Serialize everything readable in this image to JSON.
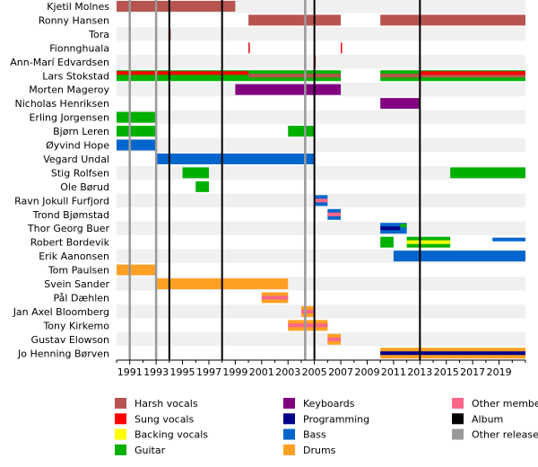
{
  "chart_data": {
    "type": "timeline",
    "x_range": [
      1990.0,
      2021.0
    ],
    "x_ticks": [
      "1991",
      "1993",
      "1995",
      "1997",
      "1999",
      "2001",
      "2003",
      "2005",
      "2007",
      "2009",
      "2011",
      "2013",
      "2015",
      "2017",
      "2019"
    ],
    "colors": {
      "harsh_vocals": "#b85450",
      "sung_vocals": "#ff0000",
      "backing_vocals": "#ffff00",
      "keyboards": "#800080",
      "programming": "#00008b",
      "guitar": "#00b000",
      "bass": "#0066cc",
      "drums": "#ffa024",
      "other": "#ff6688",
      "album": "#000000",
      "other_release": "#999999"
    },
    "legend": [
      {
        "key": "harsh_vocals",
        "label": "Harsh vocals"
      },
      {
        "key": "sung_vocals",
        "label": "Sung vocals"
      },
      {
        "key": "backing_vocals",
        "label": "Backing vocals"
      },
      {
        "key": "guitar",
        "label": "Guitar"
      },
      {
        "key": "keyboards",
        "label": "Keyboards"
      },
      {
        "key": "programming",
        "label": "Programming"
      },
      {
        "key": "bass",
        "label": "Bass"
      },
      {
        "key": "drums",
        "label": "Drums"
      },
      {
        "key": "other",
        "label": "Other members"
      },
      {
        "key": "album",
        "label": "Album"
      },
      {
        "key": "other_release",
        "label": "Other releases"
      }
    ],
    "albums": [
      1994.0,
      1998.0,
      2005.0,
      2013.0
    ],
    "other_releases": [
      1991.0,
      1993.0,
      2004.3
    ],
    "members": [
      {
        "name": "Kjetil Molnes",
        "roles": [
          {
            "role": "harsh_vocals",
            "periods": [
              [
                1990.0,
                1999.0
              ]
            ]
          }
        ]
      },
      {
        "name": "Ronny Hansen",
        "roles": [
          {
            "role": "harsh_vocals",
            "periods": [
              [
                2000.0,
                2007.0
              ],
              [
                2010.0,
                2021.0
              ]
            ]
          }
        ]
      },
      {
        "name": "Tora",
        "roles": [
          {
            "role": "sung_vocals",
            "periods": [
              [
                1994.0,
                1994.1
              ]
            ]
          }
        ]
      },
      {
        "name": "Fionnghuala",
        "roles": [
          {
            "role": "sung_vocals",
            "periods": [
              [
                2000.0,
                2000.1
              ],
              [
                2007.0,
                2007.1
              ]
            ]
          }
        ]
      },
      {
        "name": "Ann-Marí Edvardsen",
        "roles": [
          {
            "role": "sung_vocals",
            "periods": [
              [
                2005.0,
                2005.1
              ]
            ]
          }
        ]
      },
      {
        "name": "Lars Stokstad",
        "roles": [
          {
            "role": "guitar",
            "periods": [
              [
                1990.0,
                2007.0
              ],
              [
                2010.0,
                2021.0
              ]
            ]
          },
          {
            "role": "harsh_vocals",
            "periods": [
              [
                2000.0,
                2007.0
              ],
              [
                2010.0,
                2021.0
              ]
            ]
          },
          {
            "role": "sung_vocals",
            "periods": [
              [
                1990.0,
                2000.0
              ],
              [
                2013.0,
                2021.0
              ]
            ]
          }
        ]
      },
      {
        "name": "Morten Mageroy",
        "roles": [
          {
            "role": "keyboards",
            "periods": [
              [
                1999.0,
                2007.0
              ]
            ]
          }
        ]
      },
      {
        "name": "Nicholas Henriksen",
        "roles": [
          {
            "role": "keyboards",
            "periods": [
              [
                2010.0,
                2013.0
              ]
            ]
          }
        ]
      },
      {
        "name": "Erling Jorgensen",
        "roles": [
          {
            "role": "guitar",
            "periods": [
              [
                1990.0,
                1993.0
              ]
            ]
          }
        ]
      },
      {
        "name": "Bjørn Leren",
        "roles": [
          {
            "role": "guitar",
            "periods": [
              [
                1990.0,
                1993.0
              ],
              [
                2003.0,
                2005.0
              ]
            ]
          }
        ]
      },
      {
        "name": "Øyvind Hope",
        "roles": [
          {
            "role": "bass",
            "periods": [
              [
                1990.0,
                1993.0
              ]
            ]
          }
        ]
      },
      {
        "name": "Vegard Undal",
        "roles": [
          {
            "role": "bass",
            "periods": [
              [
                1993.0,
                2005.0
              ]
            ]
          }
        ]
      },
      {
        "name": "Stig Rolfsen",
        "roles": [
          {
            "role": "guitar",
            "periods": [
              [
                1995.0,
                1997.0
              ],
              [
                2015.3,
                2021.0
              ]
            ]
          }
        ]
      },
      {
        "name": "Ole Børud",
        "roles": [
          {
            "role": "guitar",
            "periods": [
              [
                1996.0,
                1997.0
              ]
            ]
          }
        ]
      },
      {
        "name": "Ravn Jokull Furfjord",
        "roles": [
          {
            "role": "bass",
            "periods": [
              [
                2005.0,
                2006.0
              ]
            ]
          },
          {
            "role": "other",
            "periods": [
              [
                2005.0,
                2006.0
              ]
            ]
          }
        ]
      },
      {
        "name": "Trond Bjømstad",
        "roles": [
          {
            "role": "bass",
            "periods": [
              [
                2006.0,
                2007.0
              ]
            ]
          },
          {
            "role": "other",
            "periods": [
              [
                2006.0,
                2007.0
              ]
            ]
          }
        ]
      },
      {
        "name": "Thor Georg Buer",
        "roles": [
          {
            "role": "bass",
            "periods": [
              [
                2010.0,
                2012.0
              ]
            ]
          },
          {
            "role": "programming",
            "periods": [
              [
                2010.0,
                2011.5
              ]
            ]
          },
          {
            "role": "guitar",
            "periods": [
              [
                2011.5,
                2012.0
              ]
            ]
          }
        ]
      },
      {
        "name": "Robert Bordevik",
        "roles": [
          {
            "role": "guitar",
            "periods": [
              [
                2010.0,
                2011.0
              ],
              [
                2012.0,
                2015.3
              ]
            ]
          },
          {
            "role": "backing_vocals",
            "periods": [
              [
                2012.0,
                2015.3
              ]
            ]
          },
          {
            "role": "bass",
            "periods": [
              [
                2018.5,
                2021.0
              ]
            ]
          }
        ]
      },
      {
        "name": "Erik Aanonsen",
        "roles": [
          {
            "role": "bass",
            "periods": [
              [
                2011.0,
                2021.0
              ]
            ]
          }
        ]
      },
      {
        "name": "Tom Paulsen",
        "roles": [
          {
            "role": "drums",
            "periods": [
              [
                1990.0,
                1993.0
              ]
            ]
          }
        ]
      },
      {
        "name": "Svein Sander",
        "roles": [
          {
            "role": "drums",
            "periods": [
              [
                1993.0,
                2003.0
              ]
            ]
          }
        ]
      },
      {
        "name": "Pål Dæhlen",
        "roles": [
          {
            "role": "drums",
            "periods": [
              [
                2001.0,
                2003.0
              ]
            ]
          },
          {
            "role": "other",
            "periods": [
              [
                2001.0,
                2003.0
              ]
            ]
          }
        ]
      },
      {
        "name": "Jan Axel Bloomberg",
        "roles": [
          {
            "role": "drums",
            "periods": [
              [
                2004.0,
                2005.0
              ]
            ]
          },
          {
            "role": "other",
            "periods": [
              [
                2004.0,
                2005.0
              ]
            ]
          }
        ]
      },
      {
        "name": "Tony Kirkemo",
        "roles": [
          {
            "role": "drums",
            "periods": [
              [
                2003.0,
                2006.0
              ]
            ]
          },
          {
            "role": "other",
            "periods": [
              [
                2003.0,
                2006.0
              ]
            ]
          }
        ]
      },
      {
        "name": "Gustav Elowson",
        "roles": [
          {
            "role": "drums",
            "periods": [
              [
                2006.0,
                2007.0
              ]
            ]
          },
          {
            "role": "other",
            "periods": [
              [
                2006.0,
                2007.0
              ]
            ]
          }
        ]
      },
      {
        "name": "Jo Henning Børven",
        "roles": [
          {
            "role": "drums",
            "periods": [
              [
                2010.0,
                2021.0
              ]
            ]
          },
          {
            "role": "programming",
            "periods": [
              [
                2010.0,
                2021.0
              ]
            ]
          }
        ]
      }
    ]
  }
}
